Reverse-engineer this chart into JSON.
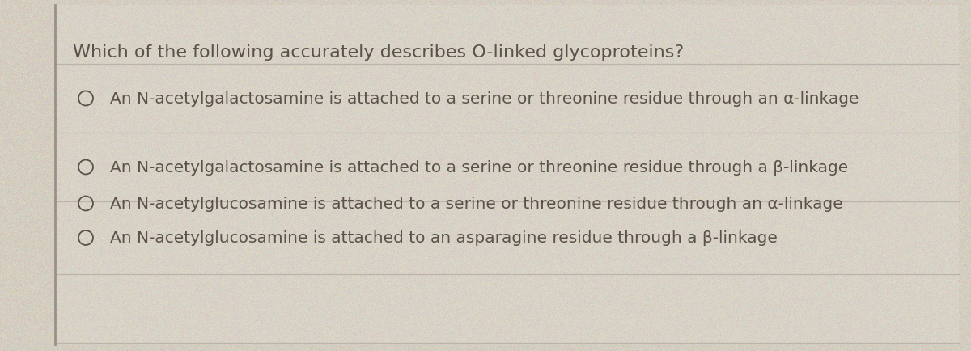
{
  "title": "Which of the following accurately describes O-linked glycoproteins?",
  "options": [
    "An N-acetylglucosamine is attached to an asparagine residue through a β-linkage",
    "An N-acetylgalactosamine is attached to a serine or threonine residue through a β-linkage",
    "An N-acetylgalactosamine is attached to a serine or threonine residue through an α-linkage",
    "An N-acetylglucosamine is attached to a serine or threonine residue through an α-linkage"
  ],
  "bg_color": "#c8c0b0",
  "card_color": "#d4cdc0",
  "text_color": "#5a5248",
  "title_fontsize": 16,
  "option_fontsize": 14.5,
  "left_border_color": "#9a9088",
  "divider_color": "#bab4aa",
  "figwidth": 12.0,
  "figheight": 4.35,
  "dpi": 100
}
